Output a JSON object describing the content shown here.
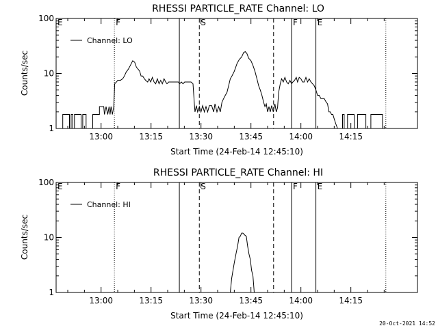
{
  "footer_timestamp": "20-Oct-2021 14:52",
  "chart_data": [
    {
      "type": "line",
      "title": "RHESSI PARTICLE_RATE Channel: LO",
      "xlabel": "Start Time (24-Feb-14 12:45:10)",
      "ylabel": "Counts/sec",
      "yscale": "log",
      "ylim": [
        1,
        100
      ],
      "xlim_minutes": [
        -13.5,
        95
      ],
      "x_ticks": [
        {
          "t": 0,
          "label": "13:00"
        },
        {
          "t": 15,
          "label": "13:15"
        },
        {
          "t": 30,
          "label": "13:30"
        },
        {
          "t": 45,
          "label": "13:45"
        },
        {
          "t": 60,
          "label": "14:00"
        },
        {
          "t": 75,
          "label": "14:15"
        }
      ],
      "y_ticks": [
        {
          "v": 1,
          "label": "1"
        },
        {
          "v": 10,
          "label": "10"
        },
        {
          "v": 100,
          "label": "100"
        }
      ],
      "legend": {
        "label": "Channel: LO",
        "position": "top-left"
      },
      "markers": [
        {
          "t": -13.5,
          "label": "E",
          "style": "none"
        },
        {
          "t": 4,
          "label": "F",
          "style": "dotted"
        },
        {
          "t": 23.5,
          "label": "",
          "style": "solid"
        },
        {
          "t": 29.5,
          "label": "S",
          "style": "dashed"
        },
        {
          "t": 51.8,
          "label": "",
          "style": "dashed"
        },
        {
          "t": 57.2,
          "label": "F",
          "style": "solid"
        },
        {
          "t": 64.5,
          "label": "E",
          "style": "solid"
        },
        {
          "t": 85.5,
          "label": "",
          "style": "dotted"
        }
      ],
      "series": [
        {
          "line_segments": [
            [
              [
                -11.5,
                1
              ],
              [
                -11.5,
                1.8
              ],
              [
                -9.5,
                1.8
              ],
              [
                -9.5,
                1
              ],
              [
                -9,
                1
              ],
              [
                -9,
                1.8
              ],
              [
                -8.5,
                1.8
              ],
              [
                -8.5,
                1
              ],
              [
                -8,
                1
              ],
              [
                -8,
                1.8
              ],
              [
                -6,
                1.8
              ],
              [
                -6,
                1
              ],
              [
                -5.5,
                1
              ],
              [
                -5.5,
                1.8
              ],
              [
                -4.5,
                1.8
              ],
              [
                -4.5,
                1
              ]
            ],
            [
              [
                -2.5,
                1
              ],
              [
                -2.5,
                1.8
              ],
              [
                -0.5,
                1.8
              ],
              [
                -0.5,
                2.5
              ],
              [
                0.8,
                2.5
              ],
              [
                1,
                1.8
              ],
              [
                1.5,
                2.5
              ],
              [
                2,
                1.8
              ],
              [
                2.4,
                2.5
              ],
              [
                2.7,
                1.8
              ],
              [
                3,
                2.5
              ],
              [
                3.4,
                1.8
              ],
              [
                3.8,
                2.5
              ],
              [
                4.1,
                6.5
              ],
              [
                4.6,
                7
              ],
              [
                5,
                7.5
              ],
              [
                5.8,
                7.5
              ],
              [
                6.5,
                8
              ],
              [
                7,
                9
              ],
              [
                7.5,
                10.5
              ],
              [
                8.2,
                12
              ],
              [
                8.8,
                14
              ],
              [
                9.5,
                17
              ],
              [
                10.1,
                16
              ],
              [
                10.6,
                13
              ],
              [
                11.1,
                12
              ],
              [
                11.6,
                11
              ],
              [
                12,
                9
              ],
              [
                12.5,
                9
              ],
              [
                13,
                8
              ],
              [
                13.4,
                7.5
              ],
              [
                14,
                7
              ],
              [
                14.4,
                8
              ],
              [
                14.9,
                7
              ],
              [
                15.4,
                8.5
              ],
              [
                15.9,
                7
              ],
              [
                16.4,
                6.5
              ],
              [
                16.9,
                8
              ],
              [
                17.4,
                6.5
              ],
              [
                17.9,
                7.5
              ],
              [
                18.4,
                6.5
              ],
              [
                18.9,
                8
              ],
              [
                19.4,
                7
              ],
              [
                19.8,
                6.5
              ],
              [
                20.3,
                7
              ],
              [
                21,
                7
              ],
              [
                22,
                7
              ],
              [
                22.7,
                7
              ],
              [
                23.2,
                7
              ],
              [
                23.6,
                6.5
              ],
              [
                24.1,
                7
              ],
              [
                24.6,
                6.5
              ],
              [
                25.1,
                7
              ],
              [
                26,
                7
              ],
              [
                26.6,
                7
              ],
              [
                27,
                7
              ],
              [
                27.6,
                6.5
              ],
              [
                28,
                2.8
              ],
              [
                28.2,
                2
              ],
              [
                28.6,
                2.6
              ],
              [
                29,
                2
              ],
              [
                29.5,
                2.5
              ],
              [
                30,
                2
              ],
              [
                30.5,
                2.6
              ],
              [
                31,
                2
              ],
              [
                31.5,
                2.5
              ],
              [
                32,
                2
              ],
              [
                32.5,
                2.6
              ],
              [
                33.2,
                2.6
              ],
              [
                33.8,
                2
              ],
              [
                34.2,
                2.8
              ],
              [
                34.8,
                2
              ],
              [
                35.3,
                2.5
              ],
              [
                35.8,
                2
              ],
              [
                36.3,
                3
              ],
              [
                36.8,
                3.5
              ],
              [
                37.3,
                4
              ],
              [
                37.8,
                4.5
              ],
              [
                38.3,
                6
              ],
              [
                38.8,
                8
              ],
              [
                39.3,
                9
              ],
              [
                40,
                11
              ],
              [
                40.8,
                15
              ],
              [
                41.5,
                18
              ],
              [
                42.2,
                20
              ],
              [
                42.8,
                24
              ],
              [
                43.3,
                25
              ],
              [
                43.8,
                23
              ],
              [
                44.3,
                19
              ],
              [
                45,
                17
              ],
              [
                45.6,
                14
              ],
              [
                46.2,
                11
              ],
              [
                46.8,
                8
              ],
              [
                47.3,
                6
              ],
              [
                47.8,
                5
              ],
              [
                48.3,
                4
              ],
              [
                48.8,
                3
              ],
              [
                49.2,
                2.5
              ],
              [
                49.6,
                2.8
              ],
              [
                50,
                2
              ],
              [
                50.4,
                2.5
              ],
              [
                50.8,
                2
              ],
              [
                51.2,
                2.6
              ],
              [
                51.7,
                2
              ],
              [
                52.2,
                2.8
              ],
              [
                52.6,
                2
              ],
              [
                53,
                2.4
              ],
              [
                53.3,
                4.5
              ],
              [
                53.8,
                6.5
              ],
              [
                54.2,
                8
              ],
              [
                54.7,
                7
              ],
              [
                55.2,
                8.5
              ],
              [
                55.7,
                7
              ],
              [
                56.2,
                6.5
              ],
              [
                56.7,
                7.5
              ],
              [
                57.2,
                6.5
              ],
              [
                57.6,
                7
              ],
              [
                58.1,
                7.5
              ],
              [
                58.6,
                8.5
              ],
              [
                59,
                7
              ],
              [
                59.5,
                8.5
              ],
              [
                60,
                8
              ],
              [
                60.5,
                7
              ],
              [
                61,
                7
              ],
              [
                61.5,
                8.5
              ],
              [
                62,
                7
              ],
              [
                62.5,
                8
              ],
              [
                63,
                7
              ],
              [
                63.5,
                6.5
              ],
              [
                64,
                6
              ],
              [
                64.5,
                5
              ],
              [
                65,
                4
              ],
              [
                65.5,
                4
              ],
              [
                66,
                3.5
              ],
              [
                67,
                3.5
              ],
              [
                67.6,
                3
              ],
              [
                68,
                2.8
              ],
              [
                68.4,
                2
              ],
              [
                68.8,
                2
              ],
              [
                69.2,
                1.8
              ],
              [
                69.6,
                1.8
              ],
              [
                70,
                1.5
              ],
              [
                70.5,
                1.2
              ],
              [
                71,
                1
              ]
            ],
            [
              [
                72.5,
                1
              ],
              [
                72.5,
                1.8
              ],
              [
                73,
                1.8
              ],
              [
                73,
                1
              ],
              [
                74,
                1
              ],
              [
                74,
                1.8
              ],
              [
                76,
                1.8
              ],
              [
                76,
                1
              ],
              [
                77,
                1
              ],
              [
                77,
                1.8
              ],
              [
                79.5,
                1.8
              ],
              [
                79.5,
                1
              ],
              [
                81,
                1
              ],
              [
                81,
                1.8
              ],
              [
                84.5,
                1.8
              ],
              [
                84.5,
                1
              ]
            ]
          ]
        }
      ]
    },
    {
      "type": "line",
      "title": "RHESSI PARTICLE_RATE Channel: HI",
      "xlabel": "Start Time (24-Feb-14 12:45:10)",
      "ylabel": "Counts/sec",
      "yscale": "log",
      "ylim": [
        1,
        100
      ],
      "xlim_minutes": [
        -13.5,
        95
      ],
      "x_ticks": [
        {
          "t": 0,
          "label": "13:00"
        },
        {
          "t": 15,
          "label": "13:15"
        },
        {
          "t": 30,
          "label": "13:30"
        },
        {
          "t": 45,
          "label": "13:45"
        },
        {
          "t": 60,
          "label": "14:00"
        },
        {
          "t": 75,
          "label": "14:15"
        }
      ],
      "y_ticks": [
        {
          "v": 1,
          "label": "1"
        },
        {
          "v": 10,
          "label": "10"
        },
        {
          "v": 100,
          "label": "100"
        }
      ],
      "legend": {
        "label": "Channel: HI",
        "position": "top-left"
      },
      "markers": [
        {
          "t": -13.5,
          "label": "E",
          "style": "none"
        },
        {
          "t": 4,
          "label": "F",
          "style": "dotted"
        },
        {
          "t": 23.5,
          "label": "",
          "style": "solid"
        },
        {
          "t": 29.5,
          "label": "S",
          "style": "dashed"
        },
        {
          "t": 51.8,
          "label": "",
          "style": "dashed"
        },
        {
          "t": 57.2,
          "label": "F",
          "style": "solid"
        },
        {
          "t": 64.5,
          "label": "E",
          "style": "solid"
        },
        {
          "t": 85.5,
          "label": "",
          "style": "dotted"
        }
      ],
      "series": [
        {
          "line_segments": [
            [
              [
                38.8,
                1
              ],
              [
                39.2,
                1.8
              ],
              [
                39.6,
                2.5
              ],
              [
                40,
                3.5
              ],
              [
                40.5,
                5
              ],
              [
                41,
                7
              ],
              [
                41.4,
                10
              ],
              [
                41.8,
                10.5
              ],
              [
                42.2,
                12
              ],
              [
                42.6,
                12
              ],
              [
                43.2,
                11
              ],
              [
                43.6,
                10.5
              ],
              [
                44,
                7
              ],
              [
                44.4,
                5
              ],
              [
                44.8,
                4
              ],
              [
                45.2,
                2.5
              ],
              [
                45.6,
                2
              ],
              [
                46,
                1
              ]
            ]
          ]
        }
      ]
    }
  ]
}
